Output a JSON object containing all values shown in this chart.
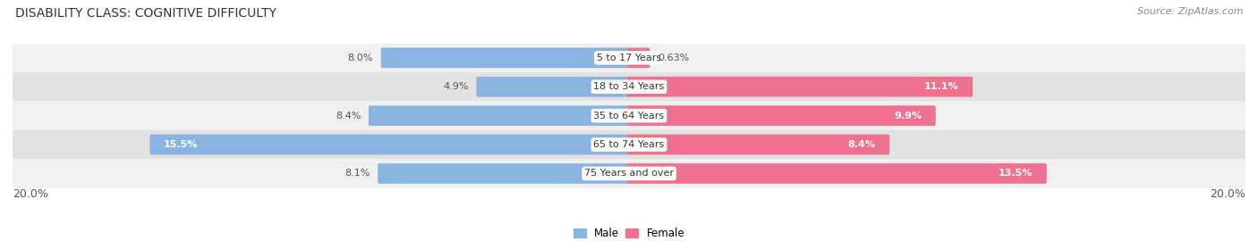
{
  "title": "DISABILITY CLASS: COGNITIVE DIFFICULTY",
  "source": "Source: ZipAtlas.com",
  "categories": [
    "5 to 17 Years",
    "18 to 34 Years",
    "35 to 64 Years",
    "65 to 74 Years",
    "75 Years and over"
  ],
  "male_values": [
    8.0,
    4.9,
    8.4,
    15.5,
    8.1
  ],
  "female_values": [
    0.63,
    11.1,
    9.9,
    8.4,
    13.5
  ],
  "male_color": "#8ab4e0",
  "female_color": "#f07090",
  "row_bg_colors": [
    "#f0f0f0",
    "#e2e2e2"
  ],
  "xlim": 20.0,
  "legend_male": "Male",
  "legend_female": "Female",
  "title_fontsize": 10,
  "source_fontsize": 8,
  "label_fontsize": 8,
  "category_fontsize": 8,
  "axis_label_fontsize": 9
}
